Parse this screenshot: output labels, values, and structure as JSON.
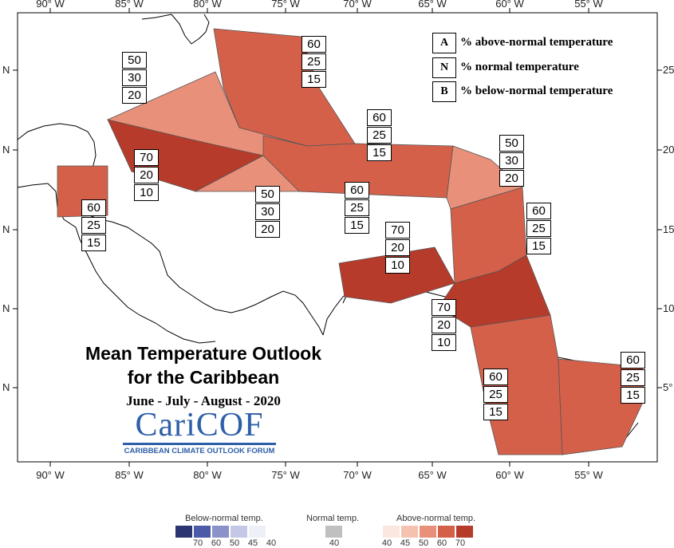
{
  "map": {
    "title_line1": "Mean Temperature Outlook",
    "title_line2": "for the Caribbean",
    "season": "June - July - August - 2020",
    "logo_name": "CariCOF",
    "logo_subtitle": "CARIBBEAN CLIMATE OUTLOOK FORUM",
    "lon_ticks": [
      "90° W",
      "85° W",
      "80° W",
      "75° W",
      "70° W",
      "65° W",
      "60° W",
      "55° W"
    ],
    "lat_ticks_left": [
      "N",
      "N",
      "N",
      "N",
      "N"
    ],
    "lat_ticks_right": [
      "25",
      "20",
      "15",
      "10",
      "5°"
    ]
  },
  "key": {
    "items": [
      {
        "letter": "A",
        "label": "% above-normal temperature"
      },
      {
        "letter": "N",
        "label": "% normal temperature"
      },
      {
        "letter": "B",
        "label": "% below-normal temperature"
      }
    ]
  },
  "regions": [
    {
      "id": "bahamas",
      "above": 60,
      "normal": 25,
      "below": 15
    },
    {
      "id": "cuba-northwest",
      "above": 50,
      "normal": 30,
      "below": 20
    },
    {
      "id": "hispaniola",
      "above": 60,
      "normal": 25,
      "below": 15
    },
    {
      "id": "leeward-islands",
      "above": 50,
      "normal": 30,
      "below": 20
    },
    {
      "id": "western-caribbean",
      "above": 70,
      "normal": 20,
      "below": 10
    },
    {
      "id": "belize",
      "above": 60,
      "normal": 25,
      "below": 15
    },
    {
      "id": "jamaica-south",
      "above": 50,
      "normal": 30,
      "below": 20
    },
    {
      "id": "puerto-rico-south",
      "above": 60,
      "normal": 25,
      "below": 15
    },
    {
      "id": "windward-islands",
      "above": 60,
      "normal": 25,
      "below": 15
    },
    {
      "id": "abc-islands",
      "above": 70,
      "normal": 20,
      "below": 10
    },
    {
      "id": "trinidad-venezuela",
      "above": 70,
      "normal": 20,
      "below": 10
    },
    {
      "id": "guyana",
      "above": 60,
      "normal": 25,
      "below": 15
    },
    {
      "id": "suriname-french-guiana",
      "above": 60,
      "normal": 25,
      "below": 15
    }
  ],
  "legend": {
    "below_title": "Below-normal temp.",
    "normal_title": "Normal temp.",
    "above_title": "Above-normal temp.",
    "below_colors": [
      "#2b3670",
      "#4b5ba8",
      "#8a92c9",
      "#c4c8e6",
      "#eef0f8"
    ],
    "below_values": [
      "70",
      "60",
      "50",
      "45",
      "40"
    ],
    "normal_color": "#c0c0c0",
    "normal_values": [
      "40"
    ],
    "above_colors": [
      "#fbe7e0",
      "#f5c2b0",
      "#e8907a",
      "#d5604a",
      "#b73b2a"
    ],
    "above_values": [
      "40",
      "45",
      "50",
      "60",
      "70"
    ]
  }
}
